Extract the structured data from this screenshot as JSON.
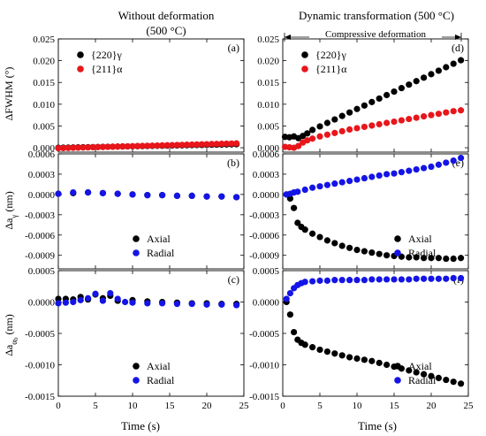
{
  "titles": {
    "left": [
      "Without deformation",
      "(500 °C)"
    ],
    "right": [
      "Dynamic transformation (500 °C)",
      "Compressive deformation"
    ]
  },
  "shared_xlabel": "Time (s)",
  "colors": {
    "black": "#000000",
    "red": "#e8161b",
    "blue": "#1414e6"
  },
  "chart_data": [
    {
      "type": "scatter",
      "panel_label": "(a)",
      "ylabel": "ΔFWHM (°)",
      "xlim": [
        0,
        25
      ],
      "ylim": [
        -0.001,
        0.025
      ],
      "xticks": [
        "0",
        "5",
        "10",
        "15",
        "20",
        "25"
      ],
      "yticks": [
        "0.000",
        "0.005",
        "0.010",
        "0.015",
        "0.020",
        "0.025"
      ],
      "legend": "top",
      "series": [
        {
          "name": "{220}γ",
          "color": "black",
          "linear": [
            0,
            24,
            0.0,
            0.0008
          ]
        },
        {
          "name": "{211}α",
          "color": "red",
          "linear": [
            0,
            24,
            -0.0001,
            0.001
          ]
        }
      ]
    },
    {
      "type": "scatter",
      "panel_label": "(b)",
      "ylabel": "Δa_γ (nm)",
      "xlim": [
        0,
        25
      ],
      "ylim": [
        -0.0011,
        0.0006
      ],
      "xticks": [
        "0",
        "5",
        "10",
        "15",
        "20",
        "25"
      ],
      "yticks": [
        "0.0006",
        "0.0003",
        "0.0000",
        "-0.0003",
        "-0.0006",
        "-0.0009"
      ],
      "legend": "bottom-center",
      "series": [
        {
          "name": "Axial",
          "color": "black",
          "points": [
            [
              0,
              1e-05
            ],
            [
              2,
              2e-05
            ],
            [
              4,
              3e-05
            ],
            [
              6,
              2e-05
            ],
            [
              8,
              1e-05
            ],
            [
              10,
              0.0
            ],
            [
              12,
              -1e-05
            ],
            [
              14,
              -1e-05
            ],
            [
              16,
              -2e-05
            ],
            [
              18,
              -2e-05
            ],
            [
              20,
              -3e-05
            ],
            [
              22,
              -3e-05
            ],
            [
              24,
              -4e-05
            ]
          ]
        },
        {
          "name": "Radial",
          "color": "blue",
          "points": [
            [
              0,
              1e-05
            ],
            [
              2,
              3e-05
            ],
            [
              4,
              3e-05
            ],
            [
              6,
              2e-05
            ],
            [
              8,
              1e-05
            ],
            [
              10,
              0.0
            ],
            [
              12,
              -1e-05
            ],
            [
              14,
              -1e-05
            ],
            [
              16,
              -2e-05
            ],
            [
              18,
              -2e-05
            ],
            [
              20,
              -3e-05
            ],
            [
              22,
              -3e-05
            ],
            [
              24,
              -4e-05
            ]
          ]
        }
      ]
    },
    {
      "type": "scatter",
      "panel_label": "(c)",
      "ylabel": "Δa_αb (nm)",
      "xlim": [
        0,
        25
      ],
      "ylim": [
        -0.0015,
        0.0005
      ],
      "xticks": [
        "0",
        "5",
        "10",
        "15",
        "20",
        "25"
      ],
      "yticks": [
        "0.0005",
        "0.0000",
        "-0.0005",
        "-0.0010",
        "-0.0015"
      ],
      "legend": "bottom-center",
      "series": [
        {
          "name": "Axial",
          "color": "black",
          "points": [
            [
              0,
              5e-05
            ],
            [
              1,
              5e-05
            ],
            [
              2,
              4e-05
            ],
            [
              3,
              8e-05
            ],
            [
              4,
              4e-05
            ],
            [
              5,
              0.00012
            ],
            [
              6,
              6e-05
            ],
            [
              7,
              0.0001
            ],
            [
              8,
              2e-05
            ],
            [
              10,
              3e-05
            ],
            [
              12,
              1e-05
            ],
            [
              14,
              0.0
            ],
            [
              16,
              -1e-05
            ],
            [
              18,
              -2e-05
            ],
            [
              20,
              -2e-05
            ],
            [
              22,
              -3e-05
            ],
            [
              24,
              -3e-05
            ]
          ]
        },
        {
          "name": "Radial",
          "color": "blue",
          "points": [
            [
              0,
              -2e-05
            ],
            [
              1,
              -1e-05
            ],
            [
              2,
              0.0
            ],
            [
              3,
              3e-05
            ],
            [
              4,
              6e-05
            ],
            [
              5,
              0.00013
            ],
            [
              6,
              2e-05
            ],
            [
              7,
              0.00014
            ],
            [
              8,
              5e-05
            ],
            [
              9,
              0.0
            ],
            [
              10,
              -1e-05
            ],
            [
              12,
              -2e-05
            ],
            [
              14,
              -2e-05
            ],
            [
              16,
              -3e-05
            ],
            [
              18,
              -3e-05
            ],
            [
              20,
              -4e-05
            ],
            [
              22,
              -4e-05
            ],
            [
              24,
              -5e-05
            ]
          ]
        }
      ]
    },
    {
      "type": "scatter",
      "panel_label": "(d)",
      "ylabel": "",
      "xlim": [
        0,
        25
      ],
      "ylim": [
        -0.001,
        0.025
      ],
      "xticks": [
        "0",
        "5",
        "10",
        "15",
        "20",
        "25"
      ],
      "yticks": [
        "0.000",
        "0.005",
        "0.010",
        "0.015",
        "0.020",
        "0.025"
      ],
      "legend": "top",
      "series": [
        {
          "name": "{220}γ",
          "color": "black",
          "points": [
            [
              0.3,
              0.0025
            ],
            [
              0.9,
              0.0024
            ],
            [
              1.5,
              0.0026
            ],
            [
              2.1,
              0.0022
            ],
            [
              2.7,
              0.0027
            ],
            [
              3.3,
              0.0033
            ],
            [
              4,
              0.0041
            ],
            [
              5,
              0.0049
            ],
            [
              6,
              0.0057
            ],
            [
              7,
              0.0065
            ],
            [
              8,
              0.0073
            ],
            [
              9,
              0.0081
            ],
            [
              10,
              0.0089
            ],
            [
              11,
              0.0097
            ],
            [
              12,
              0.0105
            ],
            [
              13,
              0.0113
            ],
            [
              14,
              0.0121
            ],
            [
              15,
              0.0129
            ],
            [
              16,
              0.0137
            ],
            [
              17,
              0.0145
            ],
            [
              18,
              0.0153
            ],
            [
              19,
              0.0161
            ],
            [
              20,
              0.0169
            ],
            [
              21,
              0.0177
            ],
            [
              22,
              0.0185
            ],
            [
              23,
              0.0193
            ],
            [
              24,
              0.0201
            ]
          ]
        },
        {
          "name": "{211}α",
          "color": "red",
          "points": [
            [
              0.3,
              0.0002
            ],
            [
              0.9,
              0.0001
            ],
            [
              1.5,
              0.0
            ],
            [
              2.1,
              0.0004
            ],
            [
              2.7,
              0.0012
            ],
            [
              3.3,
              0.0017
            ],
            [
              4,
              0.0021
            ],
            [
              5,
              0.0026
            ],
            [
              6,
              0.003
            ],
            [
              7,
              0.0034
            ],
            [
              8,
              0.0038
            ],
            [
              9,
              0.0042
            ],
            [
              10,
              0.0045
            ],
            [
              11,
              0.0048
            ],
            [
              12,
              0.0051
            ],
            [
              13,
              0.0054
            ],
            [
              14,
              0.0057
            ],
            [
              15,
              0.006
            ],
            [
              16,
              0.0063
            ],
            [
              17,
              0.0066
            ],
            [
              18,
              0.0069
            ],
            [
              19,
              0.0072
            ],
            [
              20,
              0.0075
            ],
            [
              21,
              0.0078
            ],
            [
              22,
              0.0081
            ],
            [
              23,
              0.0084
            ],
            [
              24,
              0.0086
            ]
          ]
        }
      ]
    },
    {
      "type": "scatter",
      "panel_label": "(e)",
      "ylabel": "",
      "xlim": [
        0,
        25
      ],
      "ylim": [
        -0.0011,
        0.0006
      ],
      "xticks": [
        "0",
        "5",
        "10",
        "15",
        "20",
        "25"
      ],
      "yticks": [
        "0.0006",
        "0.0003",
        "0.0000",
        "-0.0003",
        "-0.0006",
        "-0.0009"
      ],
      "legend": "bottom-right",
      "series": [
        {
          "name": "Axial",
          "color": "black",
          "points": [
            [
              0.5,
              0.0
            ],
            [
              1,
              -6e-05
            ],
            [
              1.5,
              -0.0002
            ],
            [
              2,
              -0.00042
            ],
            [
              2.5,
              -0.00048
            ],
            [
              3,
              -0.00052
            ],
            [
              4,
              -0.00058
            ],
            [
              5,
              -0.00063
            ],
            [
              6,
              -0.00068
            ],
            [
              7,
              -0.00072
            ],
            [
              8,
              -0.00076
            ],
            [
              9,
              -0.00079
            ],
            [
              10,
              -0.00082
            ],
            [
              11,
              -0.00084
            ],
            [
              12,
              -0.00086
            ],
            [
              13,
              -0.00088
            ],
            [
              14,
              -0.0009
            ],
            [
              15,
              -0.00091
            ],
            [
              16,
              -0.00092
            ],
            [
              17,
              -0.00093
            ],
            [
              18,
              -0.00093
            ],
            [
              19,
              -0.00094
            ],
            [
              20,
              -0.00094
            ],
            [
              21,
              -0.00094
            ],
            [
              22,
              -0.00095
            ],
            [
              23,
              -0.00095
            ],
            [
              24,
              -0.00094
            ]
          ]
        },
        {
          "name": "Radial",
          "color": "blue",
          "points": [
            [
              0.5,
              0.0
            ],
            [
              1,
              1e-05
            ],
            [
              1.5,
              3e-05
            ],
            [
              2,
              4e-05
            ],
            [
              3,
              7e-05
            ],
            [
              4,
              0.0001
            ],
            [
              5,
              0.00012
            ],
            [
              6,
              0.00014
            ],
            [
              7,
              0.00016
            ],
            [
              8,
              0.00018
            ],
            [
              9,
              0.0002
            ],
            [
              10,
              0.00022
            ],
            [
              11,
              0.00024
            ],
            [
              12,
              0.00026
            ],
            [
              13,
              0.00028
            ],
            [
              14,
              0.0003
            ],
            [
              15,
              0.00031
            ],
            [
              16,
              0.00033
            ],
            [
              17,
              0.00035
            ],
            [
              18,
              0.00037
            ],
            [
              19,
              0.00039
            ],
            [
              20,
              0.00041
            ],
            [
              21,
              0.00044
            ],
            [
              22,
              0.00047
            ],
            [
              23,
              0.0005
            ],
            [
              24,
              0.00054
            ]
          ]
        }
      ]
    },
    {
      "type": "scatter",
      "panel_label": "(f)",
      "ylabel": "",
      "xlim": [
        0,
        25
      ],
      "ylim": [
        -0.0015,
        0.0005
      ],
      "xticks": [
        "0",
        "5",
        "10",
        "15",
        "20",
        "25"
      ],
      "yticks": [
        "0.0005",
        "0.0000",
        "-0.0005",
        "-0.0010",
        "-0.0015"
      ],
      "legend": "bottom-right",
      "series": [
        {
          "name": "Axial",
          "color": "black",
          "points": [
            [
              0.5,
              0.0
            ],
            [
              1,
              -0.0002
            ],
            [
              1.5,
              -0.00048
            ],
            [
              2,
              -0.0006
            ],
            [
              2.5,
              -0.00065
            ],
            [
              3,
              -0.00068
            ],
            [
              4,
              -0.00072
            ],
            [
              5,
              -0.00076
            ],
            [
              6,
              -0.00079
            ],
            [
              7,
              -0.00082
            ],
            [
              8,
              -0.00085
            ],
            [
              9,
              -0.00088
            ],
            [
              10,
              -0.0009
            ],
            [
              11,
              -0.00092
            ],
            [
              12,
              -0.00094
            ],
            [
              13,
              -0.00097
            ],
            [
              14,
              -0.001
            ],
            [
              15,
              -0.00103
            ],
            [
              16,
              -0.00106
            ],
            [
              17,
              -0.00109
            ],
            [
              18,
              -0.00112
            ],
            [
              19,
              -0.00115
            ],
            [
              20,
              -0.00118
            ],
            [
              21,
              -0.00121
            ],
            [
              22,
              -0.00124
            ],
            [
              23,
              -0.00127
            ],
            [
              24,
              -0.0013
            ]
          ]
        },
        {
          "name": "Radial",
          "color": "blue",
          "points": [
            [
              0.5,
              5e-05
            ],
            [
              1,
              0.00014
            ],
            [
              1.5,
              0.00022
            ],
            [
              2,
              0.00027
            ],
            [
              2.5,
              0.0003
            ],
            [
              3,
              0.00032
            ],
            [
              4,
              0.00033
            ],
            [
              5,
              0.00034
            ],
            [
              6,
              0.00034
            ],
            [
              7,
              0.00035
            ],
            [
              8,
              0.00035
            ],
            [
              9,
              0.00035
            ],
            [
              10,
              0.00035
            ],
            [
              11,
              0.00035
            ],
            [
              12,
              0.00036
            ],
            [
              13,
              0.00036
            ],
            [
              14,
              0.00036
            ],
            [
              15,
              0.00036
            ],
            [
              16,
              0.00036
            ],
            [
              17,
              0.00036
            ],
            [
              18,
              0.00037
            ],
            [
              19,
              0.00037
            ],
            [
              20,
              0.00037
            ],
            [
              21,
              0.00037
            ],
            [
              22,
              0.00037
            ],
            [
              23,
              0.00038
            ],
            [
              24,
              0.00038
            ]
          ]
        }
      ]
    }
  ]
}
